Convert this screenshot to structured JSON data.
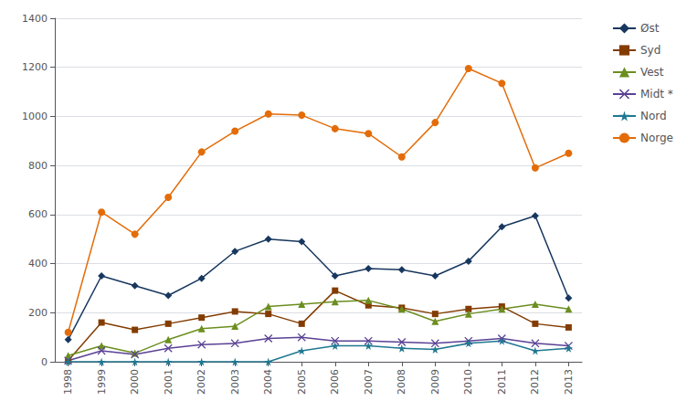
{
  "chart_data": {
    "type": "line",
    "x": [
      1998,
      1999,
      2000,
      2001,
      2002,
      2003,
      2004,
      2005,
      2006,
      2007,
      2008,
      2009,
      2010,
      2011,
      2012,
      2013
    ],
    "xlim": [
      1997.6,
      2013.4
    ],
    "xticks": [
      1998,
      1999,
      2000,
      2001,
      2002,
      2003,
      2004,
      2005,
      2006,
      2007,
      2008,
      2009,
      2010,
      2011,
      2012,
      2013
    ],
    "ylim": [
      0,
      1400
    ],
    "yticks": [
      0,
      200,
      400,
      600,
      800,
      1000,
      1200,
      1400
    ],
    "grid": "y",
    "legend": "upper right",
    "series": [
      {
        "name": "Øst",
        "color": "#17375e",
        "marker": "diamond",
        "values": [
          90,
          350,
          310,
          270,
          340,
          450,
          500,
          490,
          350,
          380,
          375,
          350,
          410,
          550,
          595,
          260
        ]
      },
      {
        "name": "Syd",
        "color": "#833c00",
        "marker": "square",
        "values": [
          5,
          160,
          130,
          155,
          180,
          205,
          195,
          155,
          290,
          230,
          220,
          195,
          215,
          225,
          155,
          140
        ]
      },
      {
        "name": "Vest",
        "color": "#6b8e1f",
        "marker": "triangle",
        "values": [
          25,
          65,
          35,
          90,
          135,
          145,
          225,
          235,
          245,
          250,
          215,
          165,
          195,
          215,
          235,
          215
        ]
      },
      {
        "name": "Midt *",
        "color": "#5a4195",
        "marker": "x",
        "values": [
          5,
          45,
          30,
          55,
          70,
          75,
          95,
          100,
          85,
          85,
          80,
          75,
          85,
          95,
          75,
          65
        ]
      },
      {
        "name": "Nord",
        "color": "#1f7891",
        "marker": "star",
        "values": [
          0,
          0,
          0,
          0,
          0,
          0,
          0,
          45,
          65,
          65,
          55,
          50,
          75,
          85,
          45,
          55
        ]
      },
      {
        "name": "Norge",
        "color": "#e36c09",
        "marker": "circle",
        "values": [
          120,
          610,
          520,
          670,
          855,
          940,
          1010,
          1005,
          950,
          930,
          835,
          975,
          1195,
          1135,
          790,
          850
        ]
      }
    ]
  }
}
